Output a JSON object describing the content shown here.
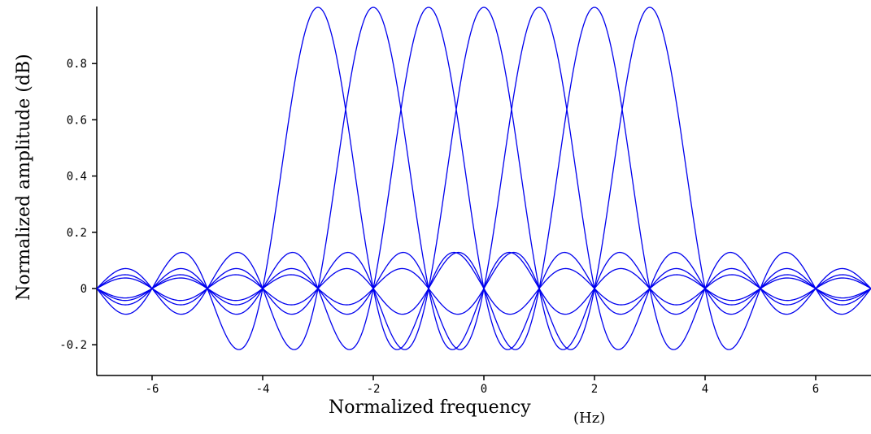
{
  "chart_data": {
    "type": "line",
    "title": "",
    "xlabel": "Normalized frequency",
    "xlabel_unit": "(Hz)",
    "ylabel": "Normalized amplitude (dB)",
    "xlim": [
      -7,
      7
    ],
    "ylim": [
      -0.25,
      1.0
    ],
    "grid": false,
    "legend": "none",
    "line_color": "#0000ee",
    "x_ticks": [
      -6,
      -4,
      -2,
      0,
      2,
      4,
      6
    ],
    "x_tick_labels": [
      "-6",
      "-4",
      "-2",
      "0",
      "2",
      "4",
      "6"
    ],
    "y_ticks": [
      -0.2,
      0,
      0.2,
      0.4,
      0.6,
      0.8
    ],
    "y_tick_labels": [
      "-0.2",
      "0",
      "0.2",
      "0.4",
      "0.6",
      "0.8"
    ],
    "series_function": "sinc",
    "series": [
      {
        "center": -3,
        "amplitude": 1.0
      },
      {
        "center": -2,
        "amplitude": 1.0
      },
      {
        "center": -1,
        "amplitude": 1.0
      },
      {
        "center": 0,
        "amplitude": 1.0
      },
      {
        "center": 1,
        "amplitude": 1.0
      },
      {
        "center": 2,
        "amplitude": 1.0
      },
      {
        "center": 3,
        "amplitude": 1.0
      }
    ]
  }
}
